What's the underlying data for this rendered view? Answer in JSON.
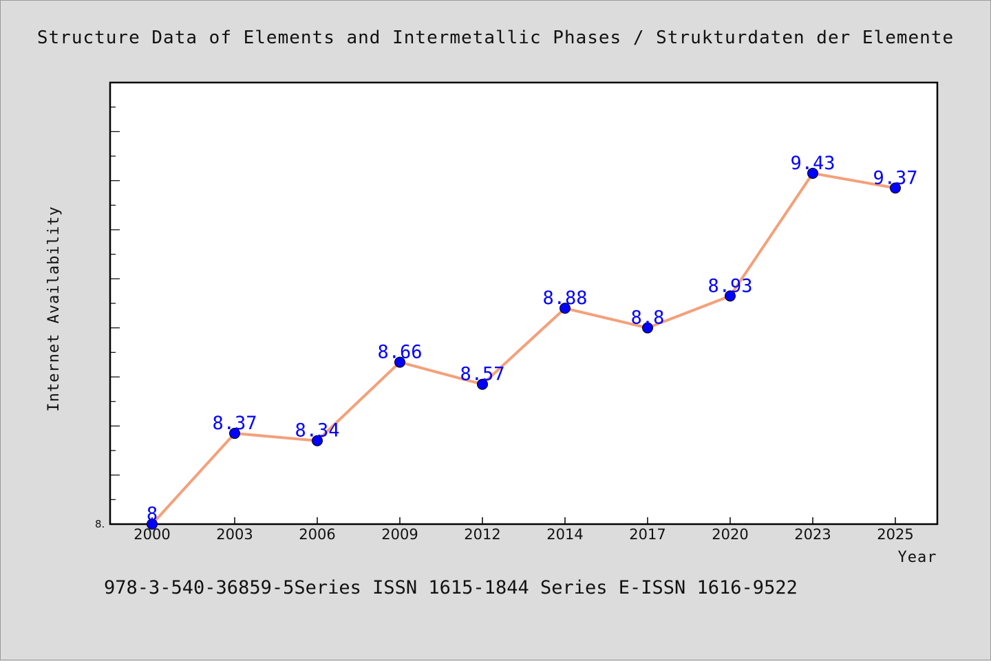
{
  "chart_data": {
    "type": "line",
    "title": "Structure Data of Elements and Intermetallic Phases / Strukturdaten der Elemente",
    "xlabel": "Year",
    "ylabel": "Internet Availability",
    "categories": [
      "2000",
      "2003",
      "2006",
      "2009",
      "2012",
      "2014",
      "2017",
      "2020",
      "2023",
      "2025"
    ],
    "series": [
      {
        "values": [
          8,
          8.37,
          8.34,
          8.66,
          8.57,
          8.88,
          8.8,
          8.93,
          9.43,
          9.37
        ],
        "labels": [
          "8",
          "8.37",
          "8.34",
          "8.66",
          "8.57",
          "8.88",
          "8.8",
          "8.93",
          "9.43",
          "9.37"
        ]
      }
    ],
    "ylim": [
      8.0,
      9.8
    ],
    "y_tick_label": "8.",
    "grid": false,
    "line_color": "#f4a07a",
    "marker_color": "#0000ff",
    "label_color": "#0000ff"
  },
  "footer": "978-3-540-36859-5Series ISSN 1615-1844 Series E-ISSN 1616-9522"
}
